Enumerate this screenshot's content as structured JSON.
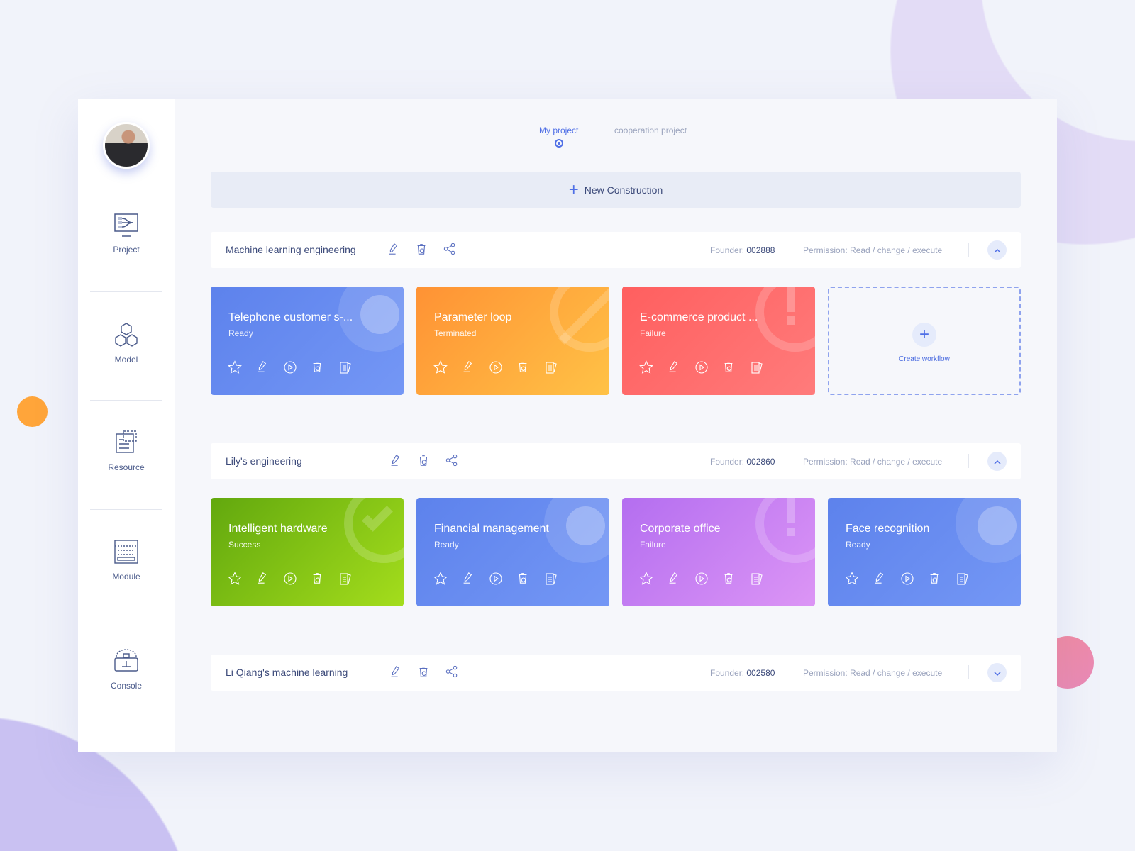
{
  "colors": {
    "accent": "#4f6fe6",
    "blue": "#6a8ef0",
    "orange": "#ffa53a",
    "red": "#ff6a6a",
    "green": "#7cc41a",
    "purple": "#c27cf0"
  },
  "sidebar": {
    "items": [
      {
        "label": "Project",
        "icon": "project-icon"
      },
      {
        "label": "Model",
        "icon": "cubes-icon"
      },
      {
        "label": "Resource",
        "icon": "resource-icon"
      },
      {
        "label": "Module",
        "icon": "module-icon"
      },
      {
        "label": "Console",
        "icon": "console-icon"
      }
    ]
  },
  "tabs": [
    {
      "label": "My project",
      "active": true
    },
    {
      "label": "cooperation project",
      "active": false
    }
  ],
  "new_button": "New Construction",
  "founder_label": "Founder:",
  "permission_label": "Permission:",
  "create_workflow": "Create workflow",
  "projects": [
    {
      "name": "Machine learning engineering",
      "founder": "002888",
      "permission": "Read / change / execute",
      "expanded": true,
      "cards": [
        {
          "title": "Telephone customer s-...",
          "status": "Ready"
        },
        {
          "title": "Parameter loop",
          "status": "Terminated"
        },
        {
          "title": "E-commerce product ...",
          "status": "Failure"
        }
      ]
    },
    {
      "name": "Lily's engineering",
      "founder": "002860",
      "permission": "Read / change / execute",
      "expanded": true,
      "cards": [
        {
          "title": "Intelligent hardware",
          "status": "Success"
        },
        {
          "title": "Financial management",
          "status": "Ready"
        },
        {
          "title": "Corporate office",
          "status": "Failure"
        },
        {
          "title": "Face recognition",
          "status": "Ready"
        }
      ]
    },
    {
      "name": "Li Qiang's machine learning",
      "founder": "002580",
      "permission": "Read / change / execute",
      "expanded": false
    }
  ]
}
